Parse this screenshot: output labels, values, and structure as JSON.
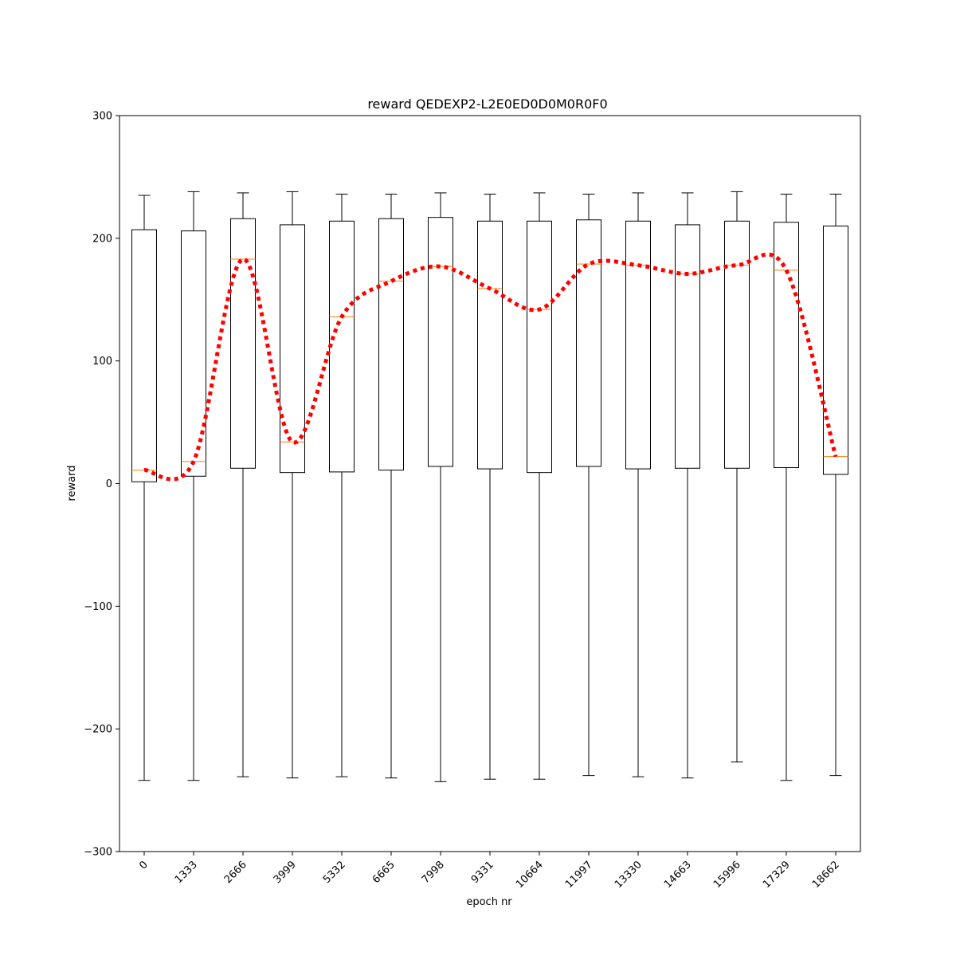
{
  "chart_data": {
    "type": "box",
    "title": "reward QEDEXP2-L2E0ED0D0M0R0F0",
    "xlabel": "epoch nr",
    "ylabel": "reward",
    "ylim": [
      -300,
      300
    ],
    "yticks": [
      -300,
      -200,
      -100,
      0,
      100,
      200,
      300
    ],
    "ytick_labels": [
      "−300",
      "−200",
      "−100",
      "0",
      "100",
      "200",
      "300"
    ],
    "categories": [
      "0",
      "1333",
      "2666",
      "3999",
      "5332",
      "6665",
      "7998",
      "9331",
      "10664",
      "11997",
      "13330",
      "14663",
      "15996",
      "17329",
      "18662"
    ],
    "boxes": [
      {
        "whisker_low": -242,
        "q1": 1.5,
        "median": 11,
        "q3": 207,
        "whisker_high": 235
      },
      {
        "whisker_low": -242,
        "q1": 6,
        "median": 18,
        "q3": 206,
        "whisker_high": 238
      },
      {
        "whisker_low": -239,
        "q1": 12.5,
        "median": 183,
        "q3": 216,
        "whisker_high": 237
      },
      {
        "whisker_low": -240,
        "q1": 9,
        "median": 34,
        "q3": 211,
        "whisker_high": 238
      },
      {
        "whisker_low": -239,
        "q1": 9.5,
        "median": 136,
        "q3": 214,
        "whisker_high": 236
      },
      {
        "whisker_low": -240,
        "q1": 11,
        "median": 165,
        "q3": 216,
        "whisker_high": 236
      },
      {
        "whisker_low": -243,
        "q1": 14,
        "median": 177,
        "q3": 217,
        "whisker_high": 237
      },
      {
        "whisker_low": -241,
        "q1": 12,
        "median": 159,
        "q3": 214,
        "whisker_high": 236
      },
      {
        "whisker_low": -241,
        "q1": 9,
        "median": 142,
        "q3": 214,
        "whisker_high": 237
      },
      {
        "whisker_low": -238,
        "q1": 14,
        "median": 179,
        "q3": 215,
        "whisker_high": 236
      },
      {
        "whisker_low": -239,
        "q1": 12,
        "median": 178,
        "q3": 214,
        "whisker_high": 237
      },
      {
        "whisker_low": -240,
        "q1": 12.5,
        "median": 171,
        "q3": 211,
        "whisker_high": 237
      },
      {
        "whisker_low": -227,
        "q1": 12.5,
        "median": 178,
        "q3": 214,
        "whisker_high": 238
      },
      {
        "whisker_low": -242,
        "q1": 13,
        "median": 174,
        "q3": 213,
        "whisker_high": 236
      },
      {
        "whisker_low": -238,
        "q1": 7.5,
        "median": 22,
        "q3": 210,
        "whisker_high": 236
      }
    ],
    "smoothed_line": {
      "style": "dotted",
      "interpolation": "smooth",
      "values": [
        11,
        18,
        183,
        34,
        136,
        165,
        177,
        159,
        142,
        179,
        178,
        171,
        178,
        174,
        22
      ]
    },
    "grid": false,
    "legend": "none",
    "colors": {
      "box": "#000000",
      "median": "#ff7f0e",
      "line": "#ff0000"
    }
  }
}
